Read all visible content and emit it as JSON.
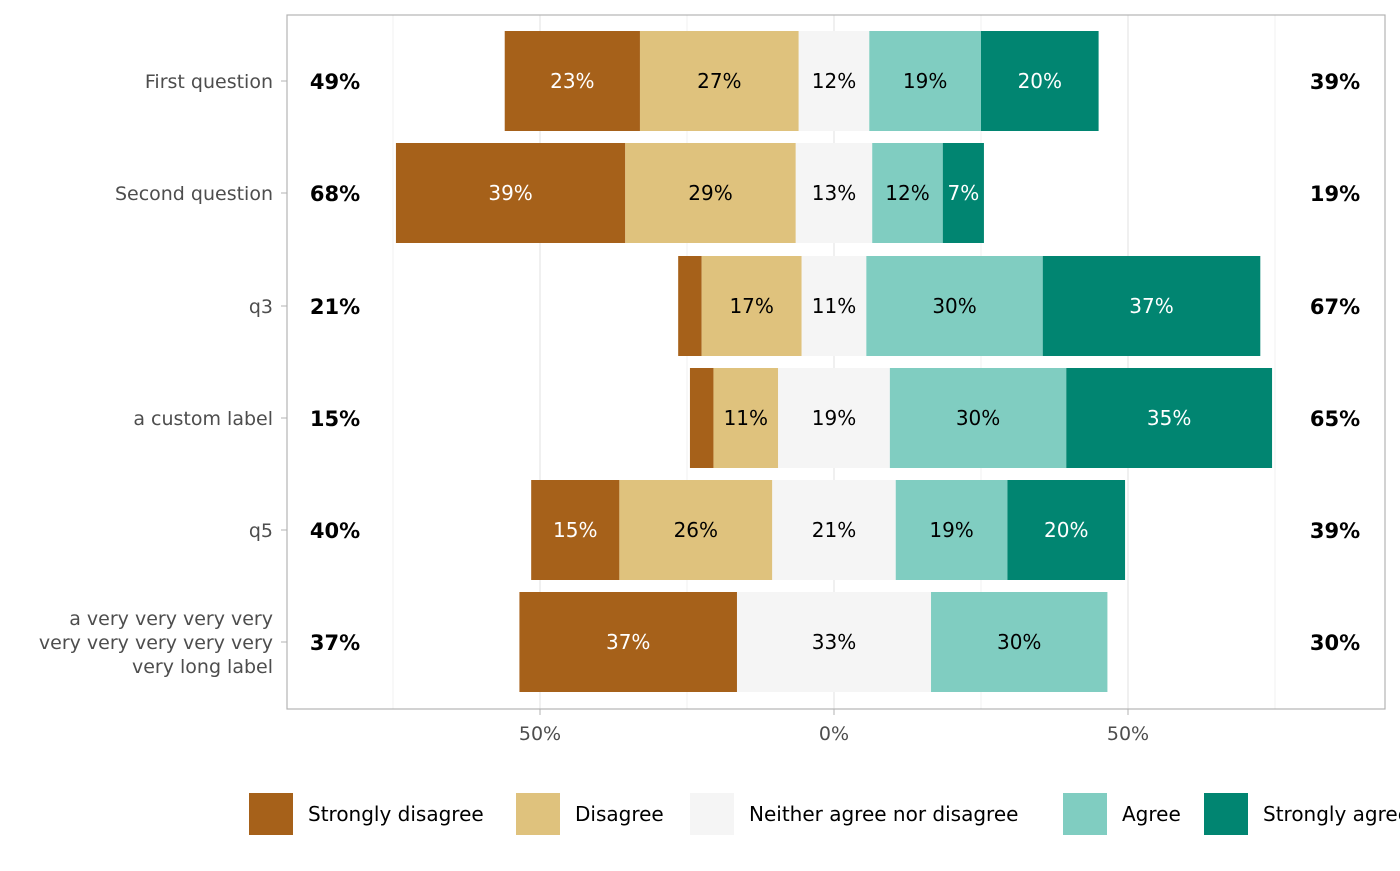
{
  "chart_data": {
    "type": "bar",
    "subtype": "diverging-stacked-likert",
    "orientation": "horizontal",
    "categories": [
      "First question",
      "Second question",
      "q3",
      "a custom label",
      "q5",
      "a very very very very very very very very very very long label"
    ],
    "category_lines": [
      [
        "First question"
      ],
      [
        "Second question"
      ],
      [
        "q3"
      ],
      [
        "a custom label"
      ],
      [
        "q5"
      ],
      [
        "a very very very very",
        "very very very very very",
        "very long label"
      ]
    ],
    "series": [
      {
        "name": "Strongly disagree",
        "color": "#A6611A",
        "values": [
          23,
          39,
          4,
          4,
          15,
          37
        ]
      },
      {
        "name": "Disagree",
        "color": "#DFC27D",
        "values": [
          27,
          29,
          17,
          11,
          26,
          0
        ]
      },
      {
        "name": "Neither agree nor disagree",
        "color": "#F5F5F5",
        "values": [
          12,
          13,
          11,
          19,
          21,
          33
        ]
      },
      {
        "name": "Agree",
        "color": "#80CDC1",
        "values": [
          19,
          12,
          30,
          30,
          19,
          30
        ]
      },
      {
        "name": "Strongly agree",
        "color": "#018571",
        "values": [
          20,
          7,
          37,
          35,
          20,
          0
        ]
      }
    ],
    "left_totals": [
      "49%",
      "68%",
      "21%",
      "15%",
      "40%",
      "37%"
    ],
    "right_totals": [
      "39%",
      "19%",
      "67%",
      "65%",
      "39%",
      "30%"
    ],
    "x_ticks": [
      {
        "value": -50,
        "label": "50%"
      },
      {
        "value": 0,
        "label": "0%"
      },
      {
        "value": 50,
        "label": "50%"
      }
    ],
    "xlim": [
      -93,
      93
    ],
    "grid": true,
    "legend_position": "bottom",
    "xlabel": "",
    "ylabel": ""
  }
}
